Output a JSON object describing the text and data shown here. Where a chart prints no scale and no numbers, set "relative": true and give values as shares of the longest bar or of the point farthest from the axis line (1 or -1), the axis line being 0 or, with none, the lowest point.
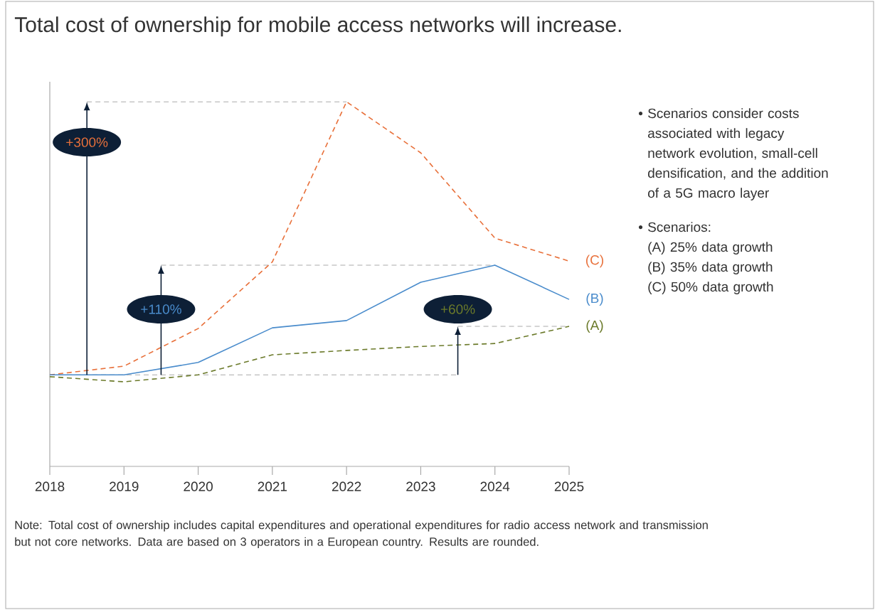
{
  "chart_data": {
    "type": "line",
    "relative": true,
    "title": "Total cost of ownership for mobile access networks will increase.",
    "categories": [
      "2018",
      "2019",
      "2020",
      "2021",
      "2022",
      "2023",
      "2024",
      "2025"
    ],
    "series": [
      {
        "name": "(C)",
        "color": "#e8703a",
        "line_style": "dashed",
        "values": [
          0.251,
          0.275,
          0.378,
          0.561,
          1,
          0.86,
          0.626,
          0.563
        ]
      },
      {
        "name": "(B)",
        "color": "#4a8ccc",
        "line_style": "solid",
        "values": [
          0.251,
          0.251,
          0.285,
          0.38,
          0.4,
          0.505,
          0.552,
          0.458
        ]
      },
      {
        "name": "(A)",
        "color": "#6b7a2a",
        "line_style": "dashed",
        "values": [
          0.246,
          0.232,
          0.251,
          0.306,
          0.318,
          0.329,
          0.337,
          0.384
        ]
      }
    ],
    "ref_lines": [
      {
        "axis": "y",
        "value": 0.251,
        "color": "#aaaaaa",
        "line_style": "dashed"
      },
      {
        "axis": "y",
        "value": 1,
        "color": "#aaaaaa",
        "line_style": "dashed"
      },
      {
        "axis": "y",
        "value": 0.552,
        "color": "#aaaaaa",
        "line_style": "dashed"
      },
      {
        "axis": "y",
        "value": 0.384,
        "color": "#aaaaaa",
        "line_style": "dashed"
      }
    ],
    "annotations": [
      "+300%",
      "+110%",
      "+60%",
      "• Scenarios consider costs associated with legacy network evolution, small-cell densification, and the addition of a 5G macro layer",
      "• Scenarios:",
      "(A) 25% data growth",
      "(B) 35% data growth",
      "(C) 50% data growth",
      "Note: Total cost of ownership includes capital expenditures and operational expenditures for radio access network and transmission but not core networks. Data are based on 3 operators in a European country. Results are rounded."
    ],
    "marker": "none"
  }
}
